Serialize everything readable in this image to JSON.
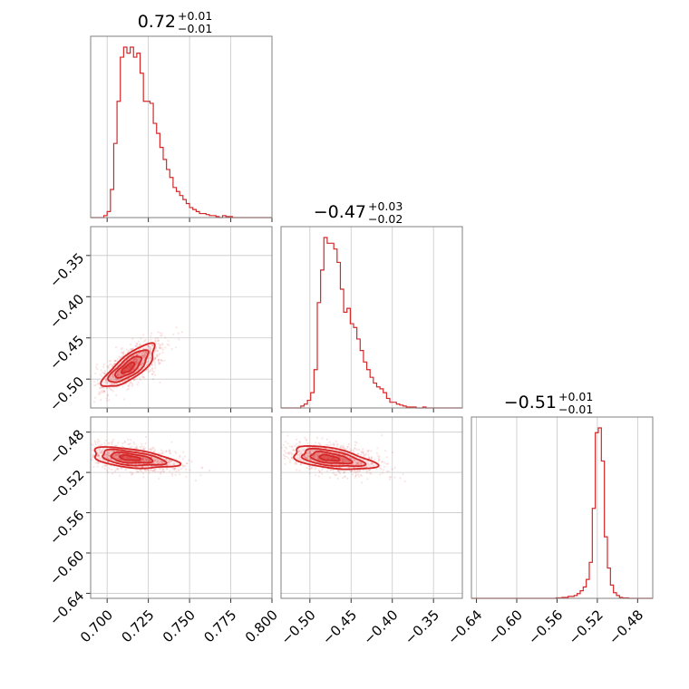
{
  "chart_data": {
    "type": "scatter",
    "color": "#d62728",
    "parameters": [
      {
        "range": [
          0.69,
          0.8
        ],
        "ticks": [
          0.7,
          0.725,
          0.75,
          0.775,
          0.8
        ],
        "tick_labels": [
          "0.700",
          "0.725",
          "0.750",
          "0.775",
          "0.800"
        ],
        "title": {
          "median": "0.72",
          "plus": "+0.01",
          "minus": "−0.01"
        },
        "histogram": {
          "edges": [
            0.69,
            0.692,
            0.694,
            0.696,
            0.698,
            0.7,
            0.702,
            0.704,
            0.706,
            0.708,
            0.71,
            0.712,
            0.714,
            0.716,
            0.718,
            0.72,
            0.722,
            0.724,
            0.726,
            0.728,
            0.73,
            0.732,
            0.734,
            0.736,
            0.738,
            0.74,
            0.742,
            0.744,
            0.746,
            0.748,
            0.75,
            0.752,
            0.754,
            0.756,
            0.758,
            0.76,
            0.762,
            0.764,
            0.766,
            0.768,
            0.77,
            0.772,
            0.774,
            0.776,
            0.778,
            0.78,
            0.782,
            0.784,
            0.786,
            0.788,
            0.79,
            0.792,
            0.794,
            0.796,
            0.798,
            0.8
          ],
          "counts": [
            0,
            0,
            0,
            0,
            1,
            3,
            14,
            37,
            58,
            80,
            85,
            82,
            85,
            80,
            82,
            72,
            58,
            58,
            57,
            47,
            42,
            35,
            29,
            24,
            20,
            15,
            13,
            11,
            9,
            7,
            5,
            4,
            3,
            2,
            2,
            1.5,
            1,
            1,
            0.5,
            0,
            1,
            0.5,
            0.5,
            0,
            0,
            0,
            0,
            0,
            0,
            0,
            0,
            0,
            0,
            0,
            0
          ]
        }
      },
      {
        "range": [
          -0.535,
          -0.315
        ],
        "ticks": [
          -0.5,
          -0.45,
          -0.4,
          -0.35
        ],
        "tick_labels": [
          "−0.50",
          "−0.45",
          "−0.40",
          "−0.35"
        ],
        "title": {
          "median": "−0.47",
          "plus": "+0.03",
          "minus": "−0.02"
        },
        "histogram": {
          "edges": [
            -0.535,
            -0.531,
            -0.527,
            -0.523,
            -0.519,
            -0.515,
            -0.511,
            -0.507,
            -0.503,
            -0.499,
            -0.495,
            -0.491,
            -0.487,
            -0.483,
            -0.479,
            -0.475,
            -0.471,
            -0.467,
            -0.463,
            -0.459,
            -0.455,
            -0.451,
            -0.447,
            -0.443,
            -0.439,
            -0.435,
            -0.431,
            -0.427,
            -0.423,
            -0.419,
            -0.415,
            -0.411,
            -0.407,
            -0.403,
            -0.399,
            -0.395,
            -0.391,
            -0.387,
            -0.383,
            -0.379,
            -0.375,
            -0.371,
            -0.367,
            -0.363,
            -0.359,
            -0.355,
            -0.351,
            -0.347,
            -0.343,
            -0.339,
            -0.335,
            -0.331,
            -0.327,
            -0.323,
            -0.319,
            -0.315
          ],
          "counts": [
            0,
            0,
            0,
            0,
            0,
            0,
            1,
            2,
            4,
            8,
            20,
            55,
            72,
            89,
            86,
            86,
            83,
            76,
            62,
            50,
            52,
            44,
            42,
            36,
            30,
            24,
            20,
            16,
            13,
            11,
            10,
            8,
            5,
            3,
            3,
            2,
            1.5,
            1,
            0.5,
            0.5,
            0.5,
            0,
            0,
            0.5,
            0,
            0,
            0,
            0,
            0,
            0,
            0,
            0,
            0,
            0,
            0
          ]
        }
      },
      {
        "range": [
          -0.645,
          -0.465
        ],
        "ticks": [
          -0.64,
          -0.6,
          -0.56,
          -0.52,
          -0.48
        ],
        "tick_labels": [
          "−0.64",
          "−0.60",
          "−0.56",
          "−0.52",
          "−0.48"
        ],
        "title": {
          "median": "−0.51",
          "plus": "+0.01",
          "minus": "−0.01"
        },
        "histogram": {
          "edges": [
            -0.645,
            -0.642,
            -0.639,
            -0.636,
            -0.633,
            -0.63,
            -0.627,
            -0.624,
            -0.621,
            -0.618,
            -0.615,
            -0.612,
            -0.609,
            -0.606,
            -0.603,
            -0.6,
            -0.597,
            -0.594,
            -0.591,
            -0.588,
            -0.585,
            -0.582,
            -0.579,
            -0.576,
            -0.573,
            -0.57,
            -0.567,
            -0.564,
            -0.561,
            -0.558,
            -0.555,
            -0.552,
            -0.549,
            -0.546,
            -0.543,
            -0.54,
            -0.537,
            -0.534,
            -0.531,
            -0.528,
            -0.525,
            -0.522,
            -0.519,
            -0.516,
            -0.513,
            -0.51,
            -0.507,
            -0.504,
            -0.501,
            -0.498,
            -0.495,
            -0.492,
            -0.489,
            -0.486,
            -0.483,
            -0.48,
            -0.477,
            -0.474,
            -0.471,
            -0.468,
            -0.465
          ],
          "counts": [
            0,
            0,
            0,
            0,
            0,
            0,
            0,
            0,
            0,
            0,
            0,
            0,
            0,
            0,
            0,
            0,
            0,
            0,
            0,
            0,
            0,
            0,
            0,
            0,
            0,
            0,
            0,
            0,
            0.5,
            0.5,
            1,
            1,
            2,
            2,
            3,
            5,
            8,
            12,
            20,
            38,
            95,
            175,
            180,
            145,
            65,
            32,
            14,
            6,
            3,
            1,
            0.5,
            0.5,
            0,
            0,
            0,
            0,
            0,
            0,
            0,
            0
          ]
        }
      }
    ],
    "pairs": [
      {
        "x_param": 0,
        "y_param": 1,
        "centroid": [
          0.7125,
          -0.487
        ],
        "major_slope": 1.85,
        "sigma_major": 0.0135,
        "sigma_minor": 0.0045,
        "contour_sigmas": [
          0.5,
          1.0,
          1.5,
          2.0
        ]
      },
      {
        "x_param": 0,
        "y_param": 2,
        "centroid": [
          0.713,
          -0.5055
        ],
        "major_slope": -0.22,
        "sigma_major": 0.012,
        "sigma_minor": 0.0045,
        "contour_sigmas": [
          0.5,
          1.0,
          1.5,
          2.0
        ]
      },
      {
        "x_param": 1,
        "y_param": 2,
        "centroid": [
          -0.478,
          -0.5055
        ],
        "major_slope": -0.12,
        "sigma_major": 0.023,
        "sigma_minor": 0.005,
        "contour_sigmas": [
          0.5,
          1.0,
          1.5,
          2.0
        ]
      }
    ],
    "grid": true
  }
}
